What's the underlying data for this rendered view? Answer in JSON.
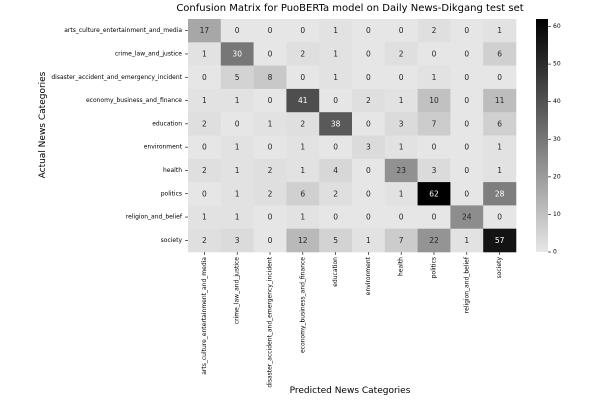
{
  "chart_data": {
    "type": "heatmap",
    "title": "Confusion Matrix for PuoBERTa model on Daily News-Dikgang test set",
    "xlabel": "Predicted News Categories",
    "ylabel": "Actual News Categories",
    "categories": [
      "arts_culture_entertainment_and_media",
      "crime_law_and_justice",
      "disaster_accident_and_emergency_incident",
      "economy_business_and_finance",
      "education",
      "environment",
      "health",
      "politics",
      "religion_and_belief",
      "society"
    ],
    "matrix": [
      [
        17,
        0,
        0,
        0,
        1,
        0,
        0,
        2,
        0,
        1
      ],
      [
        1,
        30,
        0,
        2,
        1,
        0,
        2,
        0,
        0,
        6
      ],
      [
        0,
        5,
        8,
        0,
        1,
        0,
        0,
        1,
        0,
        0
      ],
      [
        1,
        1,
        0,
        41,
        0,
        2,
        1,
        10,
        0,
        11
      ],
      [
        2,
        0,
        1,
        2,
        38,
        0,
        3,
        7,
        0,
        6
      ],
      [
        0,
        1,
        0,
        1,
        0,
        3,
        1,
        0,
        0,
        1
      ],
      [
        2,
        1,
        2,
        1,
        4,
        0,
        23,
        3,
        0,
        1
      ],
      [
        0,
        1,
        2,
        6,
        2,
        0,
        1,
        62,
        0,
        28
      ],
      [
        1,
        1,
        0,
        1,
        0,
        0,
        0,
        0,
        24,
        0
      ],
      [
        2,
        3,
        0,
        12,
        5,
        1,
        7,
        22,
        1,
        57
      ]
    ],
    "colorbar": {
      "range": [
        0,
        62
      ],
      "ticks": [
        0,
        10,
        20,
        30,
        40,
        50,
        60
      ],
      "colormap": "greys",
      "low_color": "#e6e6e6",
      "high_color": "#000000"
    }
  }
}
